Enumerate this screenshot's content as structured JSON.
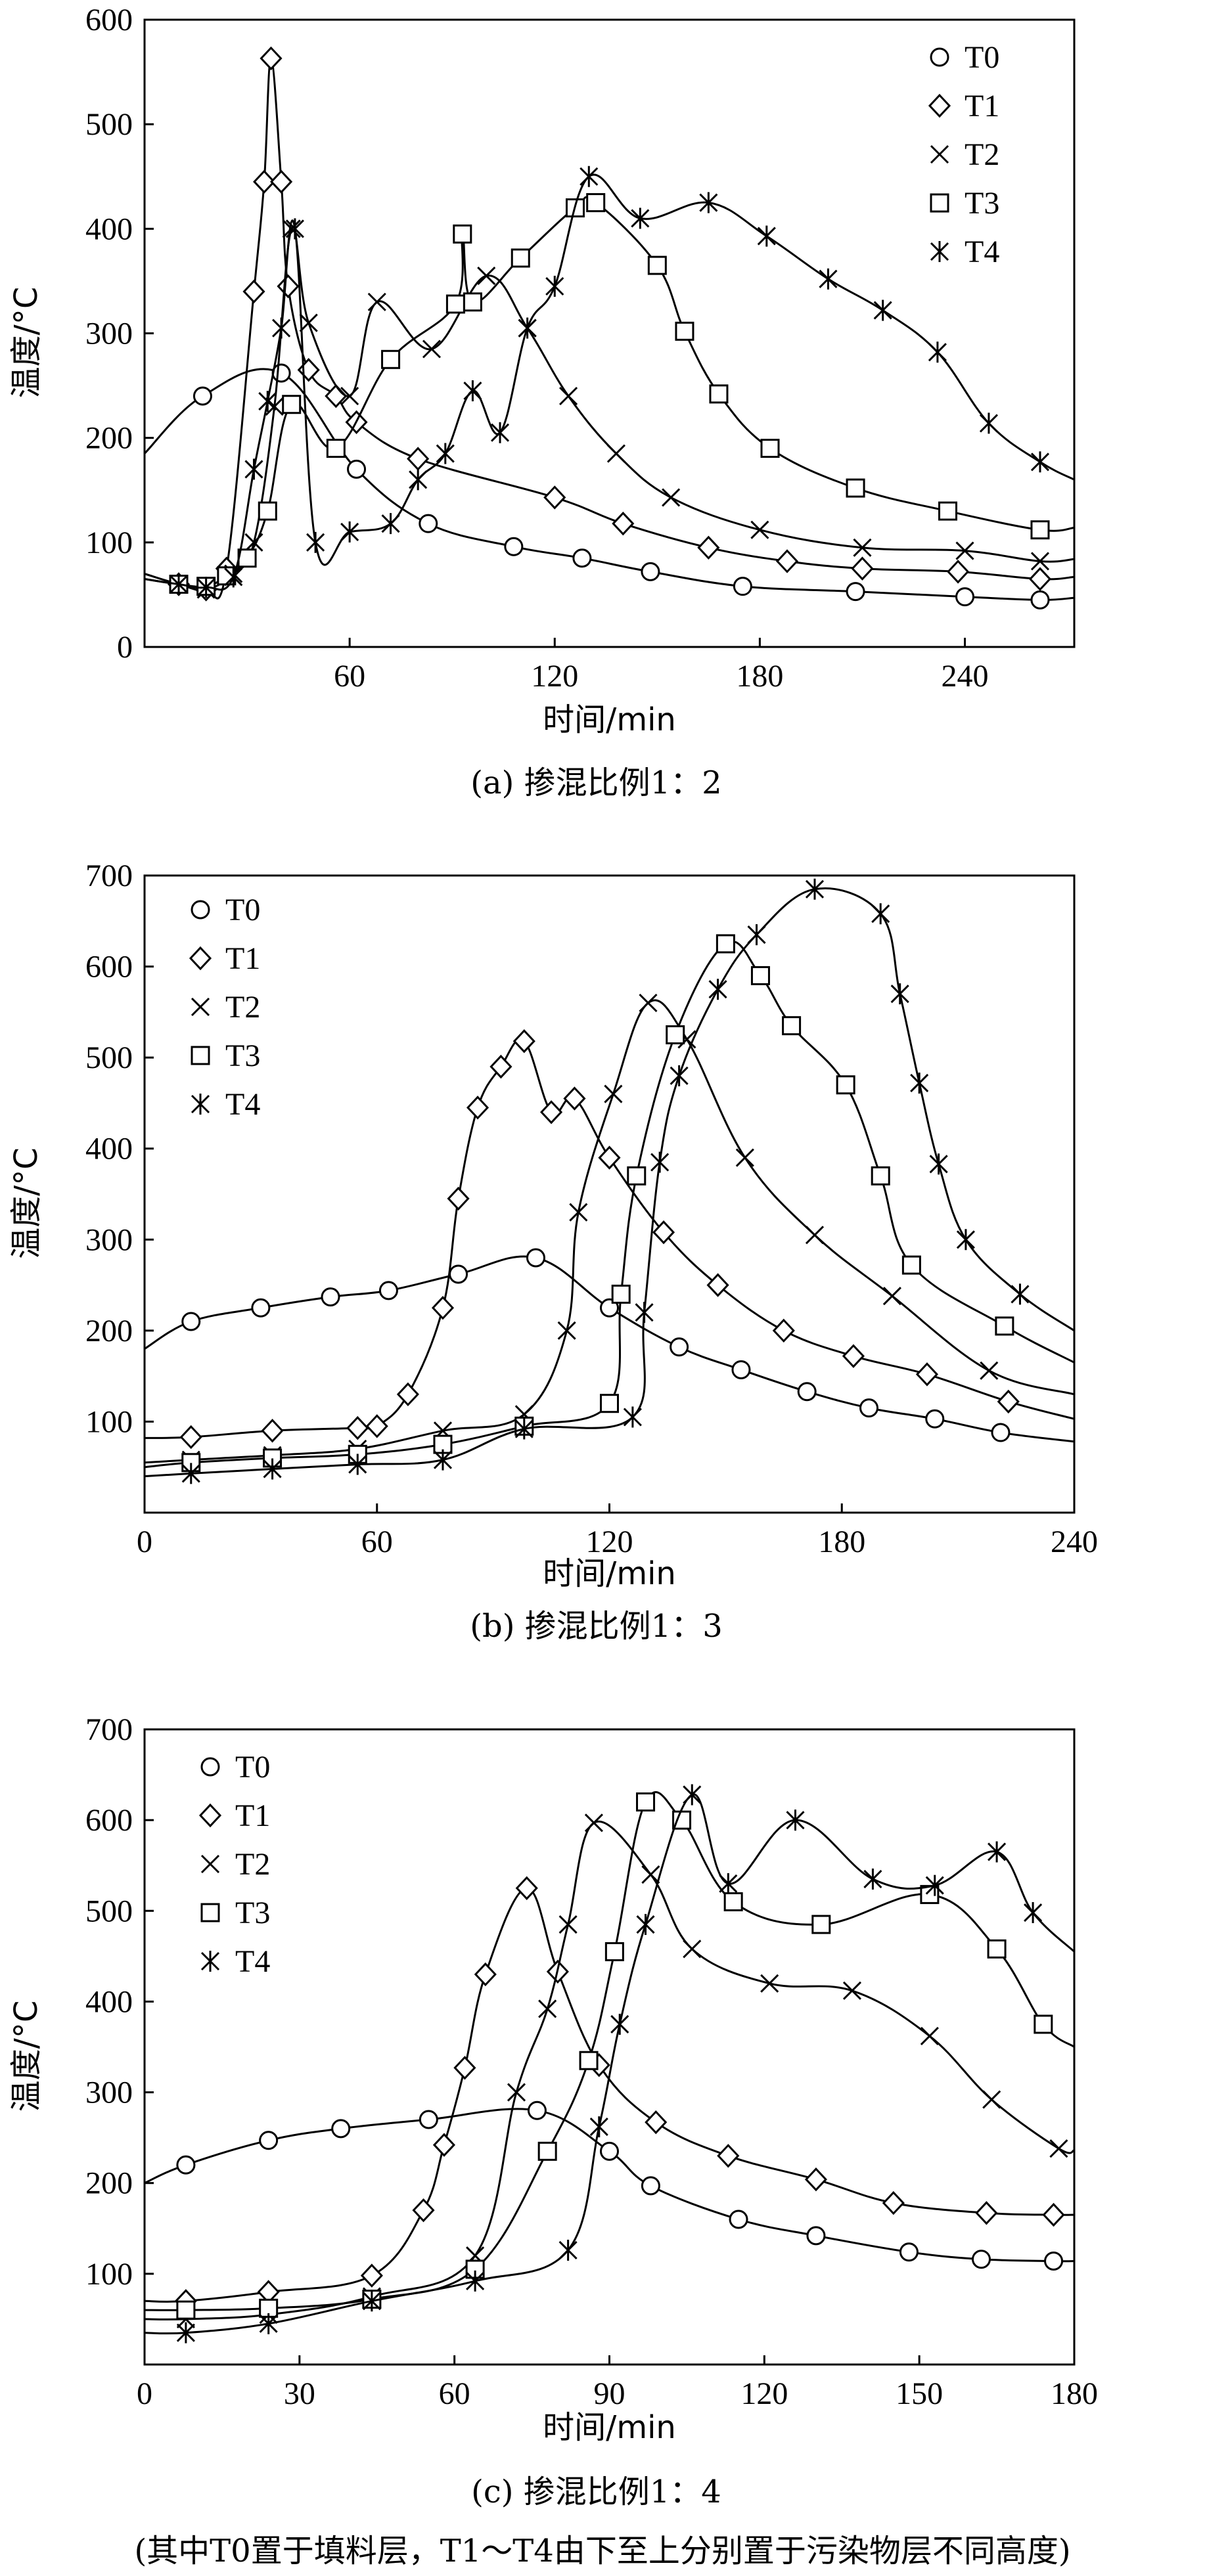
{
  "chart_data": [
    {
      "type": "line",
      "caption": "(a) 掺混比例1：2",
      "xlabel": "时间/min",
      "ylabel": "温度/°C",
      "xlim": [
        0,
        272
      ],
      "ylim": [
        0,
        600
      ],
      "xticks": [
        60,
        120,
        180,
        240
      ],
      "yticks": [
        0,
        100,
        200,
        300,
        400,
        500,
        600
      ],
      "legend_position": "top-right",
      "series": [
        {
          "name": "T0",
          "marker": "circle",
          "x": [
            0,
            17,
            40,
            62,
            83,
            108,
            128,
            148,
            175,
            208,
            240,
            262,
            272
          ],
          "y": [
            185,
            240,
            262,
            170,
            118,
            96,
            85,
            72,
            58,
            53,
            48,
            45,
            47
          ]
        },
        {
          "name": "T1",
          "marker": "diamond",
          "x": [
            0,
            10,
            18,
            24,
            32,
            35,
            37,
            40,
            42,
            48,
            56,
            62,
            80,
            120,
            140,
            165,
            188,
            210,
            238,
            262,
            272
          ],
          "y": [
            70,
            60,
            55,
            75,
            340,
            445,
            563,
            445,
            345,
            265,
            240,
            215,
            180,
            143,
            118,
            95,
            82,
            75,
            72,
            65,
            67
          ]
        },
        {
          "name": "T2",
          "marker": "x",
          "x": [
            0,
            10,
            18,
            26,
            32,
            38,
            43,
            48,
            60,
            68,
            84,
            100,
            112,
            124,
            138,
            154,
            180,
            210,
            240,
            262,
            272
          ],
          "y": [
            70,
            60,
            55,
            70,
            100,
            230,
            400,
            310,
            240,
            330,
            285,
            355,
            305,
            240,
            185,
            143,
            112,
            95,
            92,
            82,
            84
          ]
        },
        {
          "name": "T3",
          "marker": "square",
          "x": [
            0,
            10,
            18,
            24,
            30,
            36,
            43,
            56,
            72,
            91,
            93,
            96,
            110,
            126,
            132,
            150,
            158,
            168,
            183,
            208,
            235,
            262,
            272
          ],
          "y": [
            65,
            60,
            58,
            68,
            85,
            130,
            232,
            190,
            275,
            328,
            395,
            330,
            372,
            420,
            425,
            365,
            302,
            242,
            190,
            152,
            130,
            112,
            114
          ]
        },
        {
          "name": "T4",
          "marker": "asterisk",
          "x": [
            0,
            10,
            18,
            26,
            32,
            36,
            40,
            44,
            50,
            60,
            72,
            80,
            88,
            96,
            104,
            112,
            120,
            130,
            145,
            165,
            182,
            200,
            216,
            232,
            247,
            262,
            272
          ],
          "y": [
            65,
            60,
            57,
            67,
            170,
            235,
            305,
            400,
            100,
            110,
            118,
            160,
            185,
            245,
            205,
            305,
            345,
            450,
            410,
            425,
            393,
            352,
            322,
            282,
            214,
            177,
            160
          ]
        }
      ]
    },
    {
      "type": "line",
      "caption": "(b)  掺混比例1：3",
      "xlabel": "时间/min",
      "ylabel": "温度/°C",
      "xlim": [
        0,
        240
      ],
      "ylim": [
        0,
        700
      ],
      "xticks": [
        0,
        60,
        120,
        180,
        240
      ],
      "yticks": [
        100,
        200,
        300,
        400,
        500,
        600,
        700
      ],
      "legend_position": "top-left",
      "series": [
        {
          "name": "T0",
          "marker": "circle",
          "x": [
            0,
            12,
            30,
            48,
            63,
            81,
            101,
            120,
            138,
            154,
            171,
            187,
            204,
            221,
            240
          ],
          "y": [
            180,
            210,
            225,
            237,
            244,
            262,
            280,
            225,
            182,
            157,
            133,
            115,
            103,
            88,
            78
          ]
        },
        {
          "name": "T1",
          "marker": "diamond",
          "x": [
            0,
            12,
            33,
            55,
            60,
            68,
            77,
            81,
            86,
            92,
            98,
            105,
            111,
            120,
            134,
            148,
            165,
            183,
            202,
            223,
            240
          ],
          "y": [
            82,
            83,
            90,
            93,
            95,
            130,
            225,
            345,
            445,
            490,
            518,
            440,
            455,
            390,
            308,
            250,
            200,
            172,
            152,
            122,
            103
          ]
        },
        {
          "name": "T2",
          "marker": "x",
          "x": [
            0,
            12,
            33,
            55,
            77,
            98,
            109,
            112,
            121,
            130,
            140,
            155,
            173,
            193,
            218,
            240
          ],
          "y": [
            55,
            58,
            63,
            70,
            90,
            108,
            200,
            330,
            460,
            560,
            520,
            390,
            305,
            238,
            156,
            130
          ]
        },
        {
          "name": "T3",
          "marker": "square",
          "x": [
            0,
            12,
            33,
            55,
            77,
            98,
            120,
            123,
            127,
            137,
            150,
            159,
            167,
            181,
            190,
            198,
            222,
            240
          ],
          "y": [
            50,
            55,
            60,
            64,
            75,
            95,
            120,
            240,
            370,
            525,
            625,
            590,
            535,
            470,
            370,
            272,
            205,
            165
          ]
        },
        {
          "name": "T4",
          "marker": "asterisk",
          "x": [
            0,
            12,
            33,
            55,
            77,
            98,
            126,
            129,
            133,
            138,
            148,
            158,
            173,
            190,
            195,
            200,
            205,
            212,
            226,
            240
          ],
          "y": [
            40,
            43,
            48,
            53,
            58,
            92,
            105,
            220,
            385,
            480,
            575,
            635,
            685,
            658,
            570,
            472,
            383,
            300,
            240,
            200
          ]
        }
      ]
    },
    {
      "type": "line",
      "caption": "(c) 掺混比例1：4",
      "note": "(其中T0置于填料层，T1～T4由下至上分别置于污染物层不同高度)",
      "xlabel": "时间/min",
      "ylabel": "温度/°C",
      "xlim": [
        0,
        180
      ],
      "ylim": [
        0,
        700
      ],
      "xticks": [
        0,
        30,
        60,
        90,
        120,
        150,
        180
      ],
      "yticks": [
        100,
        200,
        300,
        400,
        500,
        600,
        700
      ],
      "legend_position": "top-left",
      "series": [
        {
          "name": "T0",
          "marker": "circle",
          "x": [
            0,
            8,
            24,
            38,
            55,
            76,
            90,
            98,
            115,
            130,
            148,
            162,
            176,
            180
          ],
          "y": [
            200,
            220,
            247,
            260,
            270,
            280,
            235,
            197,
            160,
            142,
            124,
            116,
            114,
            114
          ]
        },
        {
          "name": "T1",
          "marker": "diamond",
          "x": [
            0,
            8,
            24,
            44,
            54,
            58,
            62,
            66,
            74,
            80,
            88,
            99,
            113,
            130,
            145,
            163,
            176,
            180
          ],
          "y": [
            70,
            70,
            80,
            98,
            170,
            242,
            327,
            430,
            525,
            433,
            330,
            267,
            230,
            204,
            178,
            167,
            165,
            165
          ]
        },
        {
          "name": "T2",
          "marker": "x",
          "x": [
            0,
            8,
            24,
            44,
            64,
            72,
            78,
            82,
            87,
            98,
            106,
            121,
            137,
            152,
            164,
            177,
            180
          ],
          "y": [
            50,
            50,
            55,
            75,
            120,
            300,
            392,
            485,
            597,
            540,
            458,
            420,
            412,
            362,
            292,
            238,
            236
          ]
        },
        {
          "name": "T3",
          "marker": "square",
          "x": [
            0,
            8,
            24,
            44,
            64,
            78,
            86,
            91,
            97,
            104,
            114,
            131,
            152,
            165,
            174,
            180
          ],
          "y": [
            60,
            60,
            62,
            72,
            105,
            235,
            335,
            455,
            620,
            600,
            510,
            485,
            518,
            458,
            375,
            350
          ]
        },
        {
          "name": "T4",
          "marker": "asterisk",
          "x": [
            0,
            8,
            24,
            44,
            64,
            82,
            88,
            92,
            97,
            106,
            113,
            126,
            141,
            153,
            165,
            172,
            180
          ],
          "y": [
            35,
            35,
            45,
            70,
            92,
            126,
            262,
            375,
            485,
            628,
            530,
            600,
            535,
            528,
            565,
            498,
            455
          ]
        }
      ]
    }
  ]
}
